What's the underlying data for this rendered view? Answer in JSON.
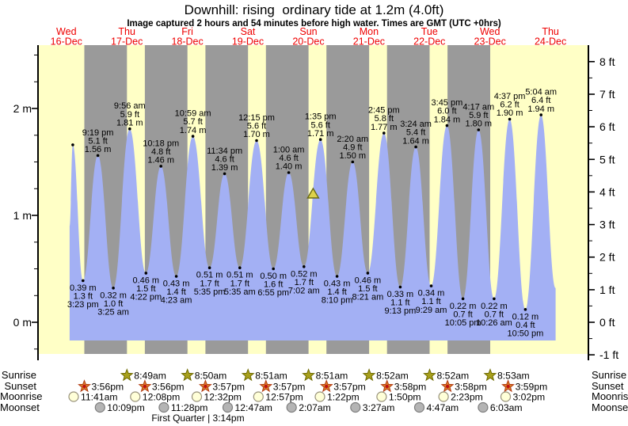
{
  "title": "Downhill: rising  ordinary tide at 1.2m (4.0ft)",
  "subtitle": "Image captured 2 hours and 54 minutes before high water. Times are GMT (UTC +0hrs)",
  "chart_data": {
    "type": "area",
    "title": "Downhill: rising  ordinary tide at 1.2m (4.0ft)",
    "days": [
      {
        "wd": "Wed",
        "date": "16-Dec"
      },
      {
        "wd": "Thu",
        "date": "17-Dec"
      },
      {
        "wd": "Fri",
        "date": "18-Dec"
      },
      {
        "wd": "Sat",
        "date": "19-Dec"
      },
      {
        "wd": "Sun",
        "date": "20-Dec"
      },
      {
        "wd": "Mon",
        "date": "21-Dec"
      },
      {
        "wd": "Tue",
        "date": "22-Dec"
      },
      {
        "wd": "Wed",
        "date": "23-Dec"
      },
      {
        "wd": "Thu",
        "date": "24-Dec"
      }
    ],
    "axes": {
      "left_labels": [
        "2 m",
        "1 m",
        "0 m"
      ],
      "right_labels": [
        "8 ft",
        "7 ft",
        "6 ft",
        "5 ft",
        "4 ft",
        "3 ft",
        "2 ft",
        "1 ft",
        "0 ft",
        "-1 ft"
      ],
      "ylim_m": [
        -0.3,
        2.6
      ]
    },
    "tide_events": [
      {
        "type": "high",
        "day": 0,
        "time_est": "11:20 am",
        "m": 1.66,
        "annotated": false
      },
      {
        "type": "low",
        "day": 0,
        "time": "3:23 pm",
        "m": 0.39,
        "ft": 1.3
      },
      {
        "type": "high",
        "day": 0,
        "time": "9:19 pm",
        "m": 1.56,
        "ft": 5.1
      },
      {
        "type": "low",
        "day": 1,
        "time": "3:25 am",
        "m": 0.32,
        "ft": 1.0
      },
      {
        "type": "high",
        "day": 1,
        "time": "9:56 am",
        "m": 1.81,
        "ft": 5.9
      },
      {
        "type": "low",
        "day": 1,
        "time": "4:22 pm",
        "m": 0.46,
        "ft": 1.5
      },
      {
        "type": "high",
        "day": 1,
        "time": "10:18 pm",
        "m": 1.46,
        "ft": 4.8
      },
      {
        "type": "low",
        "day": 2,
        "time": "4:23 am",
        "m": 0.43,
        "ft": 1.4
      },
      {
        "type": "high",
        "day": 2,
        "time": "10:59 am",
        "m": 1.74,
        "ft": 5.7
      },
      {
        "type": "low",
        "day": 2,
        "time": "5:35 pm",
        "m": 0.51,
        "ft": 1.7
      },
      {
        "type": "high",
        "day": 2,
        "time": "11:34 pm",
        "m": 1.39,
        "ft": 4.6
      },
      {
        "type": "low",
        "day": 3,
        "time": "5:35 am",
        "m": 0.51,
        "ft": 1.7
      },
      {
        "type": "high",
        "day": 3,
        "time": "12:15 pm",
        "m": 1.7,
        "ft": 5.6
      },
      {
        "type": "low",
        "day": 3,
        "time": "6:55 pm",
        "m": 0.5,
        "ft": 1.6
      },
      {
        "type": "high",
        "day": 4,
        "time": "1:00 am",
        "m": 1.4,
        "ft": 4.6
      },
      {
        "type": "low",
        "day": 4,
        "time": "7:02 am",
        "m": 0.52,
        "ft": 1.7
      },
      {
        "type": "high",
        "day": 4,
        "time": "1:35 pm",
        "m": 1.71,
        "ft": 5.6
      },
      {
        "type": "low",
        "day": 4,
        "time": "8:10 pm",
        "m": 0.43,
        "ft": 1.4
      },
      {
        "type": "high",
        "day": 5,
        "time": "2:20 am",
        "m": 1.5,
        "ft": 4.9
      },
      {
        "type": "low",
        "day": 5,
        "time": "8:21 am",
        "m": 0.46,
        "ft": 1.5
      },
      {
        "type": "high",
        "day": 5,
        "time": "2:45 pm",
        "m": 1.77,
        "ft": 5.8
      },
      {
        "type": "low",
        "day": 5,
        "time": "9:13 pm",
        "m": 0.33,
        "ft": 1.1
      },
      {
        "type": "high",
        "day": 6,
        "time": "3:24 am",
        "m": 1.64,
        "ft": 5.4
      },
      {
        "type": "low",
        "day": 6,
        "time": "9:29 am",
        "m": 0.34,
        "ft": 1.1
      },
      {
        "type": "high",
        "day": 6,
        "time": "3:45 pm",
        "m": 1.84,
        "ft": 6.0
      },
      {
        "type": "low",
        "day": 6,
        "time": "10:05 pm",
        "m": 0.22,
        "ft": 0.7
      },
      {
        "type": "high",
        "day": 7,
        "time": "4:17 am",
        "m": 1.8,
        "ft": 5.9
      },
      {
        "type": "low",
        "day": 7,
        "time": "10:26 am",
        "m": 0.22,
        "ft": 0.7
      },
      {
        "type": "high",
        "day": 7,
        "time": "4:37 pm",
        "m": 1.9,
        "ft": 6.2
      },
      {
        "type": "low",
        "day": 7,
        "time": "10:50 pm",
        "m": 0.12,
        "ft": 0.4
      },
      {
        "type": "high",
        "day": 8,
        "time": "5:04 am",
        "m": 1.94,
        "ft": 6.4
      }
    ],
    "curve_start": {
      "day": 0,
      "time_est": "10:05 am",
      "m": 0.9
    },
    "curve_end": {
      "day": 8,
      "time_est": "10:50 am",
      "m": 0.32
    },
    "current_marker": {
      "height_m": 1.2,
      "day": 4,
      "time_est": "10:41 am",
      "hours_before_high": 2.9
    },
    "colors": {
      "daylight_band": "#ffffc6",
      "night_band": "#9a9a9a",
      "tide_fill": "#a3b0f4",
      "day_label_red": "#ee0000",
      "marker_yellow": "#ddd24a",
      "text": "#000000"
    }
  },
  "astro": {
    "row_labels": [
      "Sunrise",
      "Sunset",
      "Moonrise",
      "Moonset"
    ],
    "sunrise": [
      {
        "day": 1,
        "time": "8:49am"
      },
      {
        "day": 2,
        "time": "8:50am"
      },
      {
        "day": 3,
        "time": "8:51am"
      },
      {
        "day": 4,
        "time": "8:51am"
      },
      {
        "day": 5,
        "time": "8:52am"
      },
      {
        "day": 6,
        "time": "8:52am"
      },
      {
        "day": 7,
        "time": "8:53am"
      }
    ],
    "sunset": [
      {
        "day": 0,
        "time": "3:56pm"
      },
      {
        "day": 1,
        "time": "3:56pm"
      },
      {
        "day": 2,
        "time": "3:57pm"
      },
      {
        "day": 3,
        "time": "3:57pm"
      },
      {
        "day": 4,
        "time": "3:57pm"
      },
      {
        "day": 5,
        "time": "3:58pm"
      },
      {
        "day": 6,
        "time": "3:58pm"
      },
      {
        "day": 7,
        "time": "3:59pm"
      }
    ],
    "moonrise": [
      {
        "day": 0,
        "time": "11:41am"
      },
      {
        "day": 1,
        "time": "12:08pm"
      },
      {
        "day": 2,
        "time": "12:32pm"
      },
      {
        "day": 3,
        "time": "12:57pm"
      },
      {
        "day": 4,
        "time": "1:22pm"
      },
      {
        "day": 5,
        "time": "1:50pm"
      },
      {
        "day": 6,
        "time": "2:23pm"
      },
      {
        "day": 7,
        "time": "3:02pm"
      }
    ],
    "moonset": [
      {
        "day": 0,
        "time": "10:09pm"
      },
      {
        "day": 1,
        "time": "11:28pm"
      },
      {
        "day": 3,
        "time": "12:47am"
      },
      {
        "day": 4,
        "time": "2:07am"
      },
      {
        "day": 5,
        "time": "3:27am"
      },
      {
        "day": 6,
        "time": "4:47am"
      },
      {
        "day": 7,
        "time": "6:03am"
      }
    ],
    "moon_phase": {
      "text": "First Quarter | 3:14pm"
    }
  }
}
